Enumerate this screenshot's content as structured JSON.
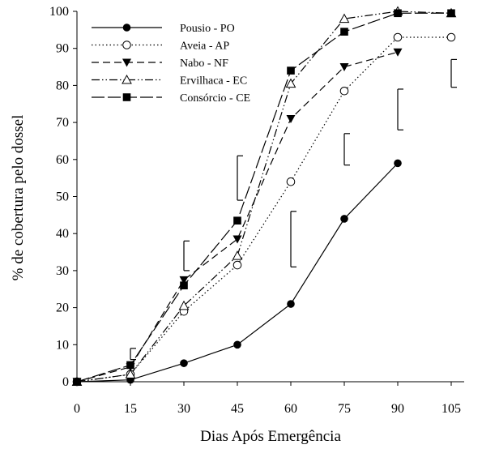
{
  "chart_data": {
    "type": "line",
    "title": "",
    "xlabel": "Dias Após Emergência",
    "ylabel": "% de cobertura pelo dossel",
    "xlim": [
      0,
      105
    ],
    "ylim": [
      0,
      100
    ],
    "xticks": [
      0,
      15,
      30,
      45,
      60,
      75,
      90,
      105
    ],
    "yticks": [
      0,
      10,
      20,
      30,
      40,
      50,
      60,
      70,
      80,
      90,
      100
    ],
    "x": [
      0,
      15,
      30,
      45,
      60,
      75,
      90,
      105
    ],
    "legend_position": "top-left",
    "grid": false,
    "series": [
      {
        "name": "Pousio - PO",
        "marker": "filled-circle",
        "line": "solid",
        "values": [
          0,
          0.5,
          5,
          10,
          21,
          44,
          59,
          null
        ]
      },
      {
        "name": "Aveia - AP",
        "marker": "open-circle",
        "line": "dotted",
        "values": [
          0,
          2,
          19,
          31.5,
          54,
          78.5,
          93,
          93
        ]
      },
      {
        "name": "Nabo - NF",
        "marker": "filled-triangle-down",
        "line": "dashed",
        "values": [
          0,
          4,
          27.5,
          38.5,
          71,
          85,
          89,
          null
        ]
      },
      {
        "name": "Ervilhaca - EC",
        "marker": "open-triangle-up",
        "line": "dash-dot-dot",
        "values": [
          0,
          2,
          20.5,
          34,
          80.5,
          98,
          100,
          99.5
        ]
      },
      {
        "name": "Consórcio - CE",
        "marker": "filled-square",
        "line": "long-dash",
        "values": [
          0,
          4.5,
          26,
          43.5,
          84,
          94.5,
          99.5,
          99.5
        ]
      }
    ],
    "error_bars": [
      {
        "x": 15,
        "low": 6,
        "high": 9
      },
      {
        "x": 30,
        "low": 30,
        "high": 38
      },
      {
        "x": 45,
        "low": 49,
        "high": 61
      },
      {
        "x": 60,
        "low": 31,
        "high": 46
      },
      {
        "x": 75,
        "low": 58.5,
        "high": 67
      },
      {
        "x": 90,
        "low": 68,
        "high": 79
      },
      {
        "x": 105,
        "low": 79.5,
        "high": 87
      }
    ]
  }
}
